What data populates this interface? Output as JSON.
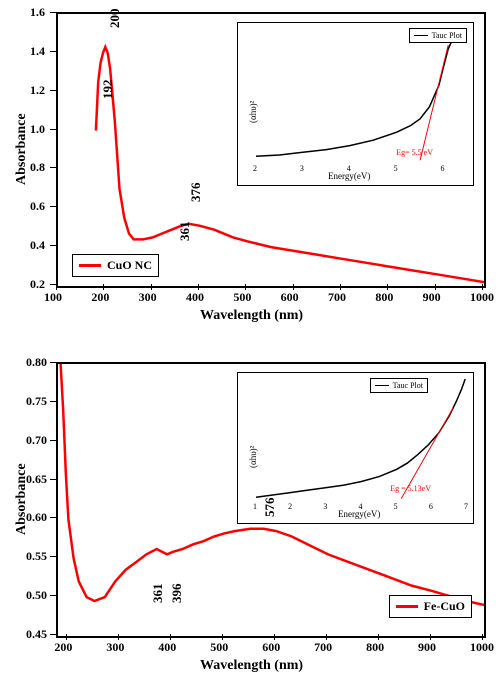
{
  "colors": {
    "line_main": "#ff0000",
    "line_inset": "#000000",
    "axis": "#000000",
    "text": "#000000",
    "eg_text": "#ff0000",
    "background": "#ffffff"
  },
  "typography": {
    "axis_title_fontsize": 14,
    "tick_fontsize": 12,
    "peak_fontsize": 13,
    "inset_tick_fontsize": 8,
    "legend_fontsize": 12,
    "font_family": "Times New Roman"
  },
  "line_style": {
    "main_width": 2.5,
    "inset_width": 1.5
  },
  "panel_top": {
    "type": "line",
    "xlabel": "Wavelength (nm)",
    "ylabel": "Absorbance",
    "xlim": [
      100,
      1000
    ],
    "ylim": [
      0.2,
      1.6
    ],
    "xticks": [
      100,
      200,
      300,
      400,
      500,
      600,
      700,
      800,
      900,
      1000
    ],
    "yticks": [
      0.2,
      0.4,
      0.6,
      0.8,
      1.0,
      1.2,
      1.4,
      1.6
    ],
    "legend": "CuO NC",
    "peaks": [
      "192",
      "200",
      "361",
      "376"
    ],
    "data": [
      [
        180,
        1.0
      ],
      [
        185,
        1.25
      ],
      [
        190,
        1.35
      ],
      [
        195,
        1.4
      ],
      [
        200,
        1.43
      ],
      [
        205,
        1.4
      ],
      [
        210,
        1.32
      ],
      [
        220,
        1.05
      ],
      [
        230,
        0.7
      ],
      [
        240,
        0.55
      ],
      [
        250,
        0.47
      ],
      [
        260,
        0.44
      ],
      [
        280,
        0.44
      ],
      [
        300,
        0.45
      ],
      [
        320,
        0.47
      ],
      [
        340,
        0.49
      ],
      [
        360,
        0.51
      ],
      [
        376,
        0.52
      ],
      [
        400,
        0.51
      ],
      [
        430,
        0.49
      ],
      [
        470,
        0.45
      ],
      [
        500,
        0.43
      ],
      [
        550,
        0.4
      ],
      [
        600,
        0.38
      ],
      [
        650,
        0.36
      ],
      [
        700,
        0.34
      ],
      [
        750,
        0.32
      ],
      [
        800,
        0.3
      ],
      [
        850,
        0.28
      ],
      [
        900,
        0.26
      ],
      [
        950,
        0.24
      ],
      [
        1000,
        0.22
      ]
    ],
    "inset": {
      "type": "line",
      "xlabel": "Energy(eV)",
      "ylabel": "(αhυ)²",
      "legend": "Tauc Plot",
      "eg": "Eg= 5.5 eV",
      "xlim": [
        2,
        6.5
      ],
      "xticks": [
        2,
        3,
        4,
        5,
        6
      ],
      "data": [
        [
          2.0,
          0.05
        ],
        [
          2.5,
          0.06
        ],
        [
          3.0,
          0.08
        ],
        [
          3.5,
          0.1
        ],
        [
          4.0,
          0.13
        ],
        [
          4.5,
          0.17
        ],
        [
          5.0,
          0.23
        ],
        [
          5.3,
          0.28
        ],
        [
          5.5,
          0.33
        ],
        [
          5.7,
          0.42
        ],
        [
          5.9,
          0.58
        ],
        [
          6.0,
          0.72
        ],
        [
          6.1,
          0.85
        ],
        [
          6.2,
          0.93
        ],
        [
          6.3,
          0.97
        ],
        [
          6.35,
          0.94
        ],
        [
          6.4,
          0.97
        ]
      ],
      "eg_line": [
        [
          5.5,
          0.02
        ],
        [
          6.1,
          0.88
        ]
      ]
    }
  },
  "panel_bottom": {
    "type": "line",
    "xlabel": "Wavelength (nm)",
    "ylabel": "Absorbance",
    "xlim": [
      180,
      1000
    ],
    "ylim": [
      0.45,
      0.8
    ],
    "xticks": [
      200,
      300,
      400,
      500,
      600,
      700,
      800,
      900,
      1000
    ],
    "yticks": [
      0.45,
      0.5,
      0.55,
      0.6,
      0.65,
      0.7,
      0.75,
      0.8
    ],
    "legend": "Fe-CuO",
    "peaks": [
      "361",
      "396",
      "576"
    ],
    "data": [
      [
        185,
        0.8
      ],
      [
        190,
        0.74
      ],
      [
        195,
        0.66
      ],
      [
        200,
        0.6
      ],
      [
        210,
        0.55
      ],
      [
        220,
        0.52
      ],
      [
        235,
        0.5
      ],
      [
        250,
        0.495
      ],
      [
        270,
        0.5
      ],
      [
        290,
        0.52
      ],
      [
        310,
        0.535
      ],
      [
        330,
        0.545
      ],
      [
        350,
        0.555
      ],
      [
        370,
        0.562
      ],
      [
        390,
        0.555
      ],
      [
        400,
        0.558
      ],
      [
        420,
        0.562
      ],
      [
        440,
        0.568
      ],
      [
        460,
        0.572
      ],
      [
        480,
        0.578
      ],
      [
        500,
        0.582
      ],
      [
        520,
        0.585
      ],
      [
        550,
        0.588
      ],
      [
        576,
        0.588
      ],
      [
        600,
        0.585
      ],
      [
        630,
        0.578
      ],
      [
        660,
        0.568
      ],
      [
        700,
        0.555
      ],
      [
        740,
        0.545
      ],
      [
        780,
        0.535
      ],
      [
        820,
        0.525
      ],
      [
        860,
        0.515
      ],
      [
        900,
        0.508
      ],
      [
        940,
        0.5
      ],
      [
        980,
        0.493
      ],
      [
        1000,
        0.49
      ]
    ],
    "inset": {
      "type": "line",
      "xlabel": "Energy(eV)",
      "ylabel": "(αhυ)²",
      "legend": "Tauc Plot",
      "eg": "Eg = 5.13eV",
      "xlim": [
        1,
        7
      ],
      "xticks": [
        1,
        2,
        3,
        4,
        5,
        6,
        7
      ],
      "data": [
        [
          1.0,
          0.03
        ],
        [
          1.5,
          0.05
        ],
        [
          2.0,
          0.07
        ],
        [
          2.5,
          0.09
        ],
        [
          3.0,
          0.11
        ],
        [
          3.5,
          0.13
        ],
        [
          4.0,
          0.16
        ],
        [
          4.5,
          0.2
        ],
        [
          5.0,
          0.26
        ],
        [
          5.3,
          0.31
        ],
        [
          5.6,
          0.38
        ],
        [
          5.9,
          0.46
        ],
        [
          6.2,
          0.56
        ],
        [
          6.5,
          0.7
        ],
        [
          6.7,
          0.82
        ],
        [
          6.85,
          0.92
        ],
        [
          6.95,
          1.0
        ]
      ],
      "eg_line": [
        [
          5.13,
          0.02
        ],
        [
          6.6,
          0.76
        ]
      ]
    }
  }
}
